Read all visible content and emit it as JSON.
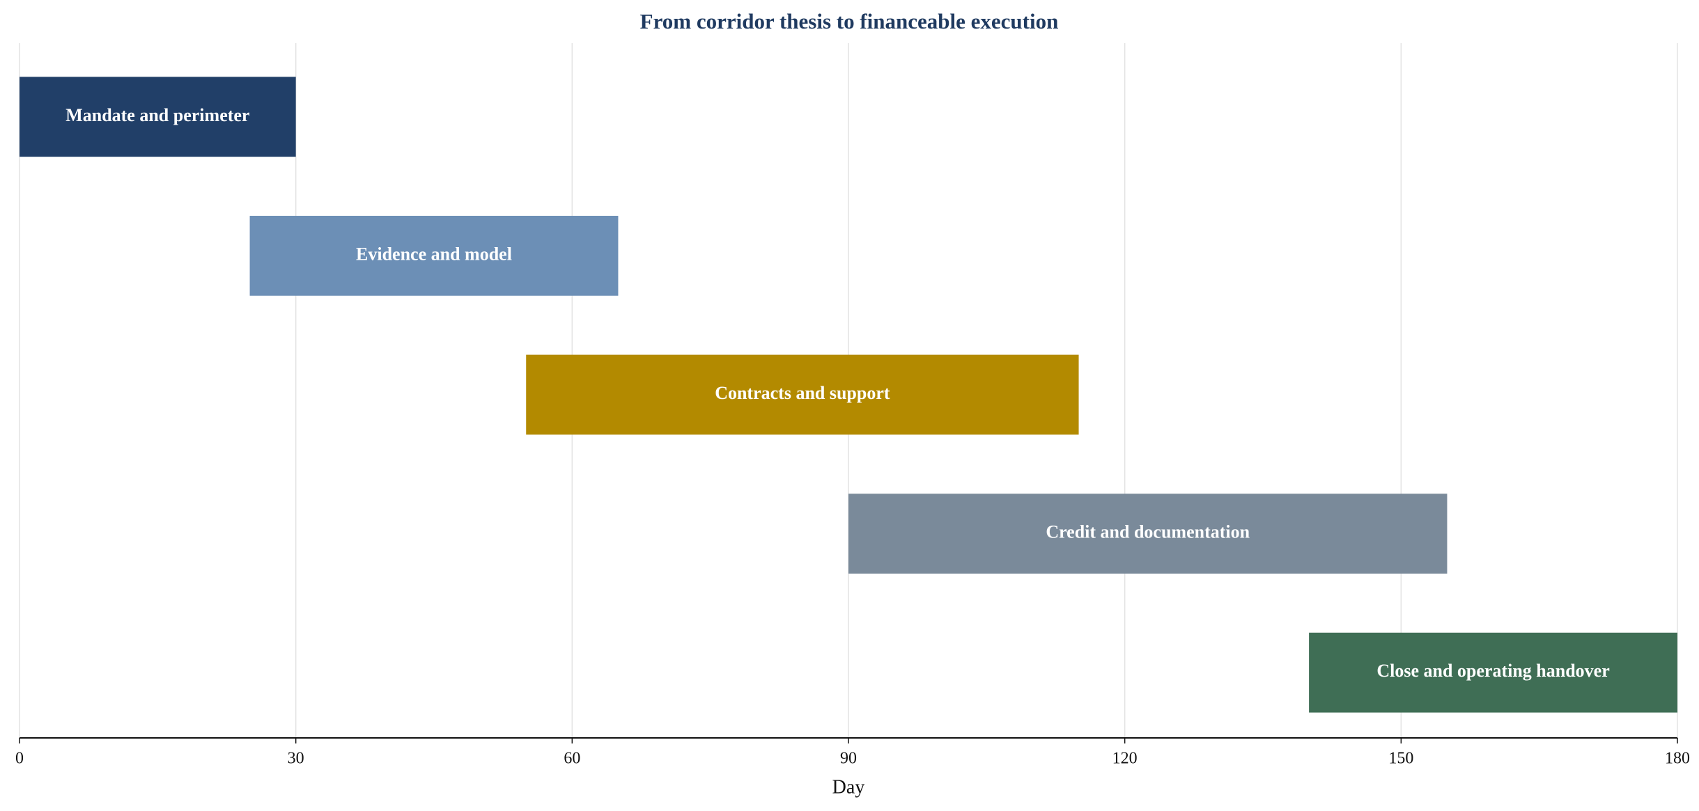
{
  "chart_data": {
    "type": "gantt",
    "title": "From corridor thesis to financeable execution",
    "x_label": "Day",
    "tasks": [
      {
        "name": "Mandate and perimeter",
        "start": 0,
        "end": 30,
        "color": "#213f68"
      },
      {
        "name": "Evidence and model",
        "start": 25,
        "end": 65,
        "color": "#6c8fb6"
      },
      {
        "name": "Contracts and support",
        "start": 55,
        "end": 115,
        "color": "#b38a00"
      },
      {
        "name": "Credit and documentation",
        "start": 90,
        "end": 155,
        "color": "#7a8a9a"
      },
      {
        "name": "Close and operating handover",
        "start": 140,
        "end": 180,
        "color": "#3f6e55"
      }
    ],
    "xlim": [
      0,
      180
    ],
    "xticks": [
      0,
      30,
      60,
      90,
      120,
      150,
      180
    ],
    "grid": true
  }
}
